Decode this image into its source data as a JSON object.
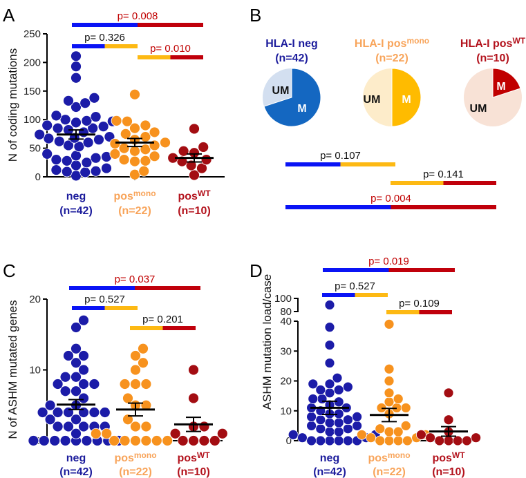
{
  "panel_letters": [
    "A",
    "B",
    "C",
    "D"
  ],
  "colors": {
    "neg": "#1c1ca8",
    "posmono": "#f7921e",
    "posWT": "#a30d12",
    "bar_neg": "#0a14f5",
    "bar_posmono": "#fdb913",
    "bar_posWT": "#c0000b",
    "label_neg": "#1c1c9c",
    "label_posmono": "#f8a45a",
    "label_posWT": "#b3121c",
    "p_significant": "#c00000",
    "p_ns": "#111111"
  },
  "groups": [
    {
      "key": "neg",
      "main": "neg",
      "sup": "",
      "n": "(n=42)"
    },
    {
      "key": "posmono",
      "main": "pos",
      "sup": "mono",
      "n": "(n=22)"
    },
    {
      "key": "posWT",
      "main": "pos",
      "sup": "WT",
      "n": "(n=10)"
    }
  ],
  "chart_data": [
    {
      "panel": "A",
      "type": "scatter",
      "subtype": "dot-plot with mean ± SEM",
      "ylabel": "N of coding mutations",
      "ylim": [
        0,
        250
      ],
      "yticks": [
        0,
        50,
        100,
        150,
        200,
        250
      ],
      "series": [
        {
          "group": "neg",
          "values": [
            211,
            193,
            173,
            138,
            133,
            129,
            122,
            107,
            105,
            100,
            98,
            97,
            95,
            90,
            88,
            85,
            85,
            82,
            78,
            74,
            70,
            68,
            67,
            65,
            62,
            60,
            55,
            53,
            40,
            37,
            35,
            33,
            30,
            28,
            25,
            20,
            15,
            12,
            10,
            9,
            8,
            2
          ],
          "mean": 74,
          "sem": 8
        },
        {
          "group": "posmono",
          "values": [
            144,
            98,
            97,
            90,
            85,
            78,
            75,
            70,
            65,
            60,
            58,
            55,
            50,
            48,
            45,
            40,
            36,
            30,
            28,
            27,
            10,
            4
          ],
          "mean": 60,
          "sem": 7
        },
        {
          "group": "posWT",
          "values": [
            84,
            52,
            45,
            42,
            33,
            30,
            27,
            20,
            15,
            3
          ],
          "mean": 33,
          "sem": 7
        }
      ],
      "comparisons": [
        {
          "groups": [
            "neg",
            "posWT"
          ],
          "label": "p= 0.008",
          "significant": true
        },
        {
          "groups": [
            "neg",
            "posmono"
          ],
          "label": "p= 0.326",
          "significant": false
        },
        {
          "groups": [
            "posmono",
            "posWT"
          ],
          "label": "p= 0.010",
          "significant": true
        }
      ]
    },
    {
      "panel": "B",
      "type": "pie",
      "pies": [
        {
          "group": "neg",
          "title": "HLA-I neg",
          "title_sup": "",
          "n": "(n=42)",
          "slices": [
            {
              "label": "M",
              "fraction": 0.7
            },
            {
              "label": "UM",
              "fraction": 0.3
            }
          ],
          "color_M": "#1467c1",
          "color_UM": "#d3dff0"
        },
        {
          "group": "posmono",
          "title": "HLA-I pos",
          "title_sup": "mono",
          "n": "(n=22)",
          "slices": [
            {
              "label": "M",
              "fraction": 0.5
            },
            {
              "label": "UM",
              "fraction": 0.5
            }
          ],
          "color_M": "#ffbb00",
          "color_UM": "#fdecca"
        },
        {
          "group": "posWT",
          "title": "HLA-I pos",
          "title_sup": "WT",
          "n": "(n=10)",
          "slices": [
            {
              "label": "M",
              "fraction": 0.2
            },
            {
              "label": "UM",
              "fraction": 0.8
            }
          ],
          "color_M": "#c00000",
          "color_UM": "#f8e2d6"
        }
      ],
      "comparisons": [
        {
          "groups": [
            "neg",
            "posmono"
          ],
          "label": "p= 0.107",
          "significant": false
        },
        {
          "groups": [
            "posmono",
            "posWT"
          ],
          "label": "p= 0.141",
          "significant": false
        },
        {
          "groups": [
            "neg",
            "posWT"
          ],
          "label": "p= 0.004",
          "significant": true
        }
      ]
    },
    {
      "panel": "C",
      "type": "scatter",
      "subtype": "dot-plot with mean ± SEM",
      "ylabel": "N of ASHM mutated genes",
      "ylim": [
        0,
        20
      ],
      "yticks": [
        0,
        10,
        20
      ],
      "series": [
        {
          "group": "neg",
          "values": [
            17,
            16,
            13,
            12,
            12,
            11,
            10,
            9,
            9,
            8,
            8,
            8,
            7,
            7,
            6,
            5,
            5,
            4,
            4,
            4,
            4,
            4,
            4,
            3,
            3,
            2,
            2,
            2,
            2,
            2,
            1,
            1,
            0,
            0,
            0,
            0,
            0,
            0,
            0,
            0,
            0,
            0
          ],
          "mean": 5.1,
          "sem": 0.7
        },
        {
          "group": "posmono",
          "values": [
            13,
            12,
            11,
            10,
            8,
            8,
            8,
            6,
            5,
            5,
            3,
            2,
            2,
            1,
            1,
            1,
            0,
            0,
            0,
            0,
            0,
            0
          ],
          "mean": 4.4,
          "sem": 0.9
        },
        {
          "group": "posWT",
          "values": [
            10,
            6,
            2,
            2,
            1,
            1,
            0,
            0,
            0,
            0
          ],
          "mean": 2.3,
          "sem": 1.0
        }
      ],
      "comparisons": [
        {
          "groups": [
            "neg",
            "posWT"
          ],
          "label": "p= 0.037",
          "significant": true
        },
        {
          "groups": [
            "neg",
            "posmono"
          ],
          "label": "p= 0.527",
          "significant": false
        },
        {
          "groups": [
            "posmono",
            "posWT"
          ],
          "label": "p= 0.201",
          "significant": false
        }
      ]
    },
    {
      "panel": "D",
      "type": "scatter",
      "subtype": "dot-plot with mean ± SEM, broken y-axis",
      "ylabel": "ASHM mutation load/case",
      "ylim": [
        0,
        100
      ],
      "axis_break": [
        40,
        80
      ],
      "yticks": [
        0,
        10,
        20,
        30,
        40,
        80,
        100
      ],
      "series": [
        {
          "group": "neg",
          "values": [
            90,
            38,
            32,
            26,
            21,
            19,
            19,
            18,
            17,
            17,
            16,
            14,
            14,
            13,
            12,
            11,
            11,
            10,
            9,
            9,
            8,
            8,
            7,
            7,
            6,
            6,
            5,
            5,
            4,
            4,
            3,
            3,
            2,
            2,
            1,
            1,
            0,
            0,
            0,
            0,
            0,
            0
          ],
          "mean": 11,
          "sem": 2.2
        },
        {
          "group": "posmono",
          "values": [
            39,
            24,
            20,
            16,
            14,
            13,
            11,
            11,
            11,
            9,
            5,
            4,
            3,
            3,
            2,
            2,
            1,
            1,
            0,
            0,
            0,
            0
          ],
          "mean": 8.6,
          "sem": 2.2
        },
        {
          "group": "posWT",
          "values": [
            16,
            7,
            3,
            2,
            1,
            1,
            0,
            0,
            0,
            0
          ],
          "mean": 3.1,
          "sem": 1.6
        }
      ],
      "comparisons": [
        {
          "groups": [
            "neg",
            "posWT"
          ],
          "label": "p= 0.019",
          "significant": true
        },
        {
          "groups": [
            "neg",
            "posmono"
          ],
          "label": "p= 0.527",
          "significant": false
        },
        {
          "groups": [
            "posmono",
            "posWT"
          ],
          "label": "p= 0.109",
          "significant": false
        }
      ]
    }
  ]
}
